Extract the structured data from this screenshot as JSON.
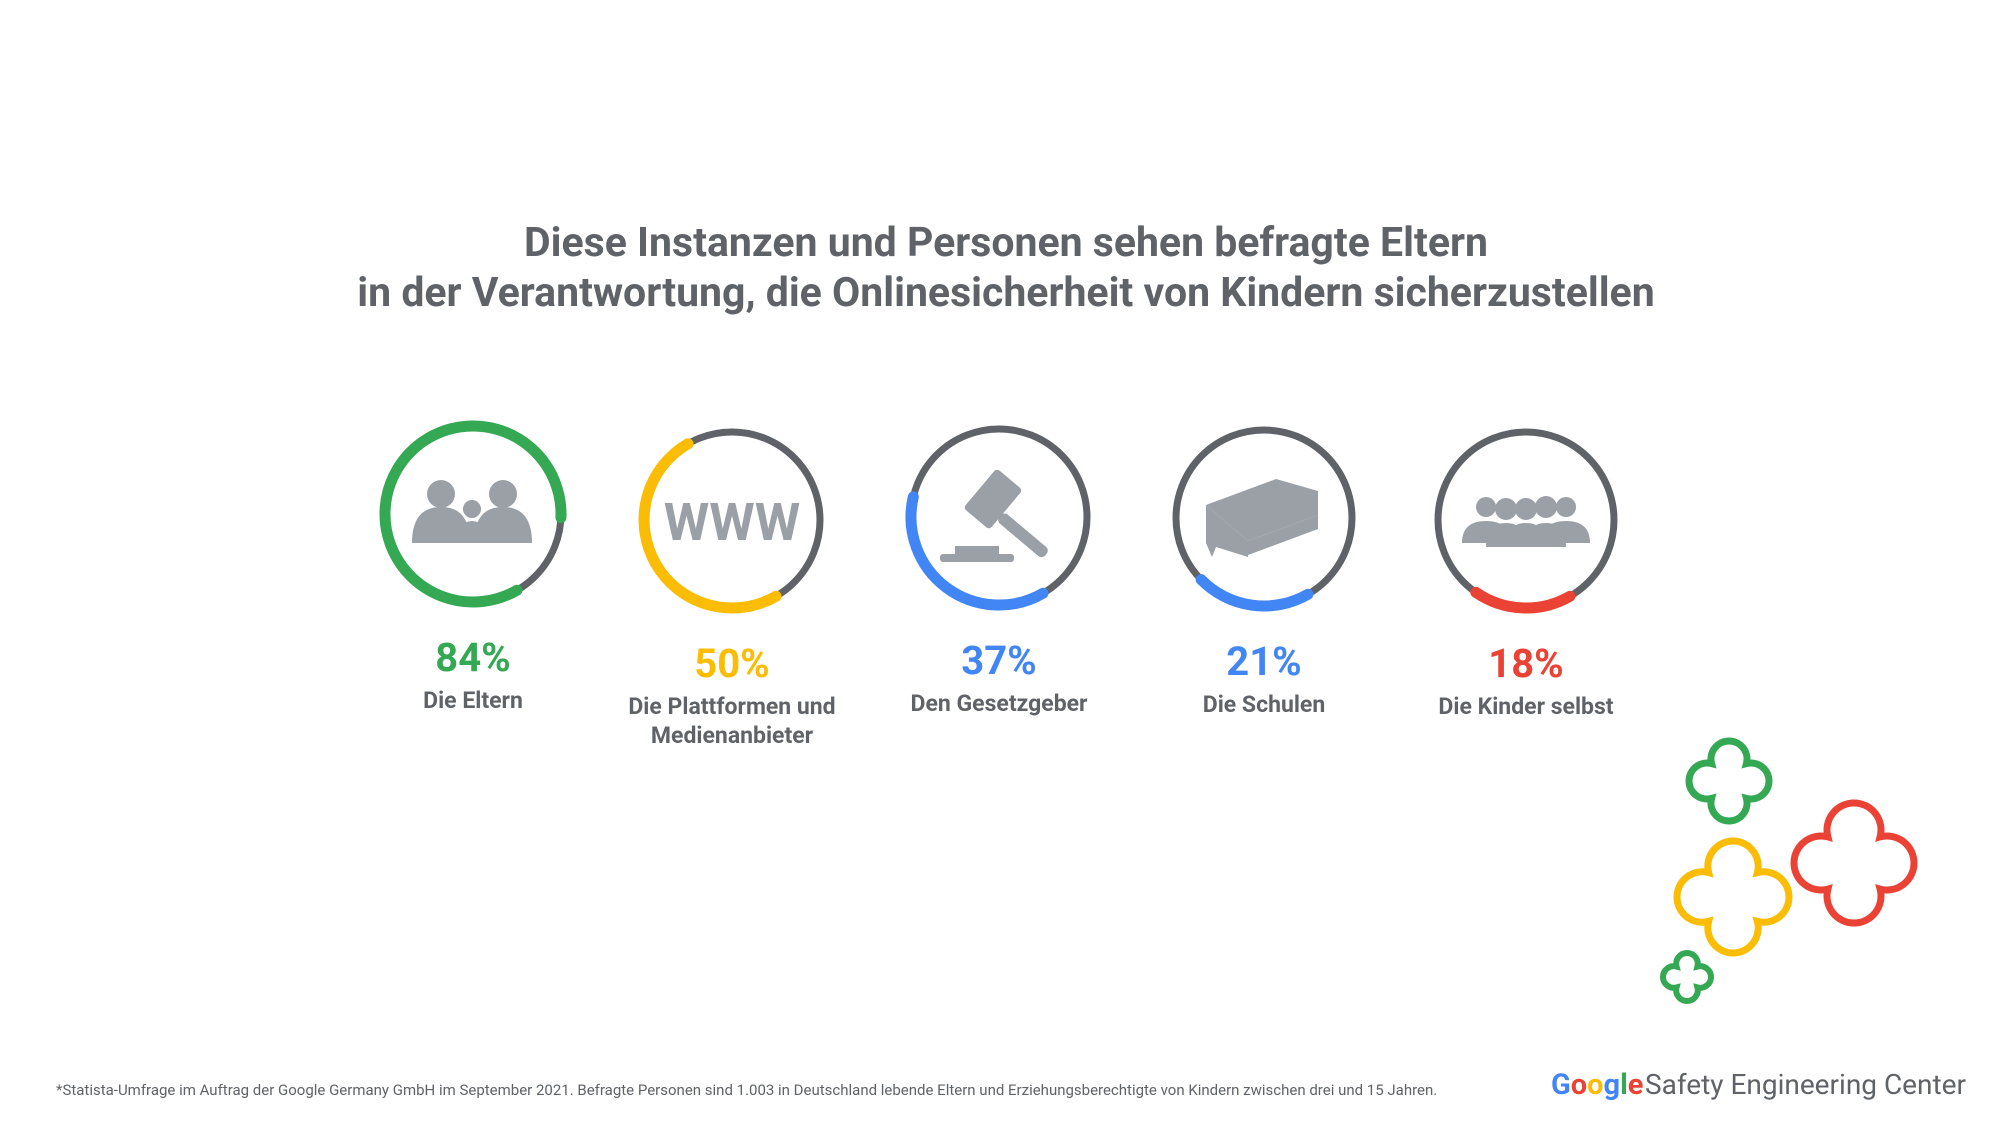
{
  "chart_data": {
    "type": "progress-rings",
    "title_lines": [
      "Diese Instanzen und Personen sehen befragte Eltern",
      "in der Verantwortung, die Onlinesicherheit von Kindern sicherzustellen"
    ],
    "categories": [
      "Die Eltern",
      "Die Plattformen und Medienanbieter",
      "Den Gesetzgeber",
      "Die Schulen",
      "Die Kinder selbst"
    ],
    "values": [
      84,
      50,
      37,
      21,
      18
    ],
    "value_labels": [
      "84%",
      "50%",
      "37%",
      "21%",
      "18%"
    ],
    "colors": [
      "#34a853",
      "#fbbc04",
      "#4285f4",
      "#4285f4",
      "#ea4335"
    ],
    "ylim": [
      0,
      100
    ]
  },
  "icon_text": "WWW",
  "footnote": "*Statista-Umfrage im Auftrag der Google Germany GmbH im September 2021. Befragte Personen sind 1.003 in Deutschland lebende Eltern und Erziehungsberechtigte von Kindern zwischen drei und 15 Jahren.",
  "brand": {
    "logo": "Google",
    "name": "Safety Engineering Center"
  }
}
